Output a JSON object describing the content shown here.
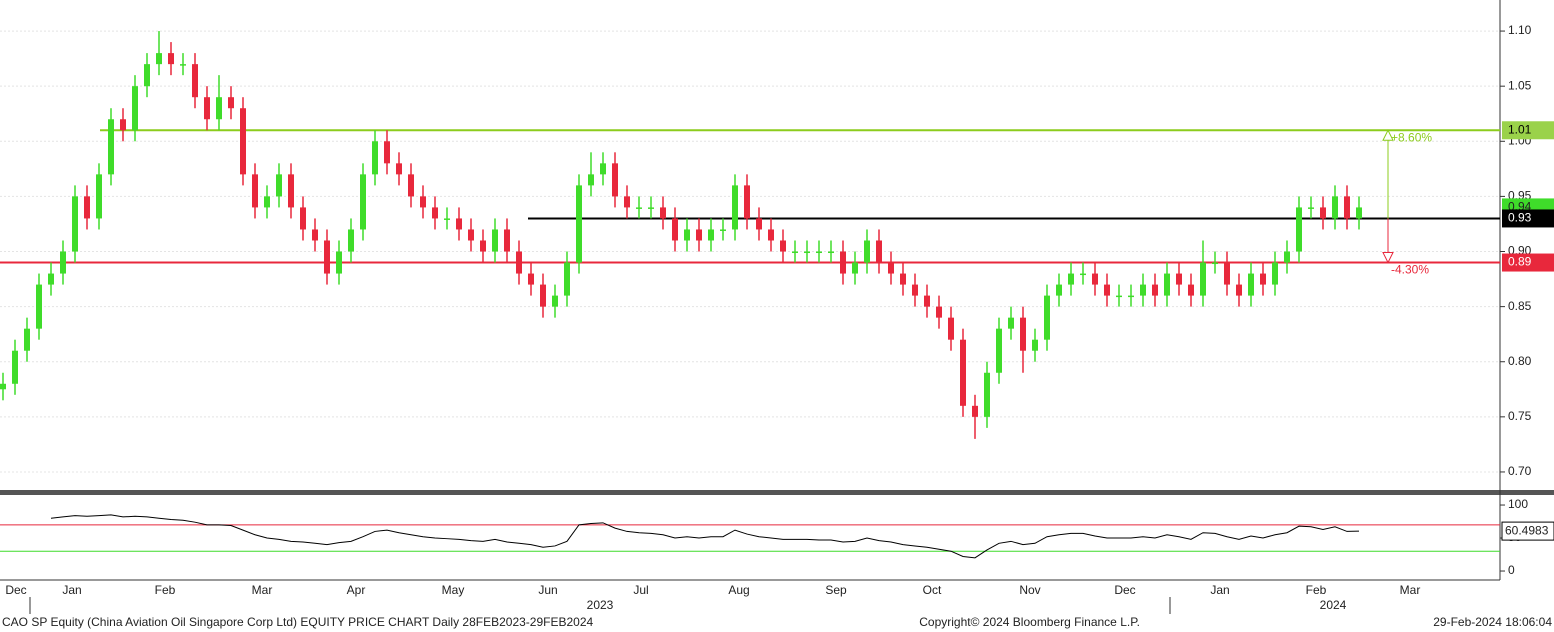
{
  "chart_data": [
    {
      "type": "candlestick",
      "title": "CAO SP Equity (China Aviation Oil Singapore Corp Ltd) EQUITY PRICE CHART  Daily 28FEB2023-29FEB2024",
      "copyright": "Copyright© 2024 Bloomberg Finance L.P.",
      "timestamp": "29-Feb-2024 18:06:04",
      "xtick_labels": [
        "Dec",
        "Jan",
        "Feb",
        "Mar",
        "Apr",
        "May",
        "Jun",
        "Jul",
        "Aug",
        "Sep",
        "Oct",
        "Nov",
        "Dec",
        "Jan",
        "Feb",
        "Mar"
      ],
      "year_labels": [
        "2023",
        "2024"
      ],
      "open": [
        0.775,
        0.78,
        0.81,
        0.83,
        0.87,
        0.88,
        0.9,
        0.95,
        0.93,
        0.97,
        1.02,
        1.01,
        1.05,
        1.07,
        1.08,
        1.07,
        1.07,
        1.04,
        1.02,
        1.04,
        1.03,
        0.97,
        0.94,
        0.95,
        0.97,
        0.94,
        0.92,
        0.91,
        0.88,
        0.9,
        0.92,
        0.97,
        1.0,
        0.98,
        0.97,
        0.95,
        0.94,
        0.93,
        0.93,
        0.92,
        0.91,
        0.9,
        0.92,
        0.9,
        0.88,
        0.87,
        0.85,
        0.86,
        0.89,
        0.96,
        0.97,
        0.98,
        0.95,
        0.94,
        0.94,
        0.94,
        0.93,
        0.91,
        0.92,
        0.91,
        0.92,
        0.92,
        0.96,
        0.93,
        0.92,
        0.91,
        0.9,
        0.9,
        0.9,
        0.9,
        0.9,
        0.88,
        0.89,
        0.91,
        0.89,
        0.88,
        0.87,
        0.86,
        0.85,
        0.84,
        0.82,
        0.76,
        0.75,
        0.79,
        0.83,
        0.84,
        0.81,
        0.82,
        0.86,
        0.87,
        0.88,
        0.88,
        0.87,
        0.86,
        0.86,
        0.86,
        0.87,
        0.86,
        0.88,
        0.87,
        0.86,
        0.89,
        0.89,
        0.87,
        0.86,
        0.88,
        0.87,
        0.89,
        0.9,
        0.94,
        0.94,
        0.93,
        0.95,
        0.93
      ],
      "high": [
        0.79,
        0.82,
        0.84,
        0.88,
        0.89,
        0.91,
        0.96,
        0.96,
        0.98,
        1.03,
        1.03,
        1.06,
        1.08,
        1.1,
        1.09,
        1.08,
        1.08,
        1.05,
        1.06,
        1.05,
        1.04,
        0.98,
        0.96,
        0.98,
        0.98,
        0.95,
        0.93,
        0.92,
        0.91,
        0.93,
        0.98,
        1.01,
        1.01,
        0.99,
        0.98,
        0.96,
        0.95,
        0.94,
        0.94,
        0.93,
        0.92,
        0.93,
        0.93,
        0.91,
        0.89,
        0.88,
        0.87,
        0.9,
        0.97,
        0.99,
        0.99,
        0.99,
        0.96,
        0.95,
        0.95,
        0.95,
        0.94,
        0.93,
        0.93,
        0.93,
        0.93,
        0.97,
        0.97,
        0.94,
        0.93,
        0.92,
        0.91,
        0.91,
        0.91,
        0.91,
        0.91,
        0.9,
        0.92,
        0.92,
        0.9,
        0.89,
        0.88,
        0.87,
        0.86,
        0.85,
        0.83,
        0.77,
        0.8,
        0.84,
        0.85,
        0.85,
        0.83,
        0.87,
        0.88,
        0.89,
        0.89,
        0.89,
        0.88,
        0.87,
        0.87,
        0.88,
        0.88,
        0.89,
        0.89,
        0.88,
        0.91,
        0.9,
        0.9,
        0.88,
        0.89,
        0.89,
        0.9,
        0.91,
        0.95,
        0.95,
        0.95,
        0.96,
        0.96,
        0.95
      ],
      "low": [
        0.765,
        0.77,
        0.8,
        0.82,
        0.86,
        0.87,
        0.89,
        0.92,
        0.92,
        0.96,
        1.0,
        1.0,
        1.04,
        1.06,
        1.06,
        1.06,
        1.03,
        1.01,
        1.01,
        1.02,
        0.96,
        0.93,
        0.93,
        0.94,
        0.93,
        0.91,
        0.9,
        0.87,
        0.87,
        0.89,
        0.91,
        0.96,
        0.97,
        0.96,
        0.94,
        0.93,
        0.92,
        0.92,
        0.91,
        0.9,
        0.89,
        0.89,
        0.89,
        0.87,
        0.86,
        0.84,
        0.84,
        0.85,
        0.88,
        0.95,
        0.96,
        0.94,
        0.93,
        0.93,
        0.93,
        0.92,
        0.9,
        0.9,
        0.9,
        0.9,
        0.91,
        0.91,
        0.92,
        0.91,
        0.9,
        0.89,
        0.89,
        0.89,
        0.89,
        0.89,
        0.87,
        0.87,
        0.88,
        0.88,
        0.87,
        0.86,
        0.85,
        0.84,
        0.83,
        0.81,
        0.75,
        0.73,
        0.74,
        0.78,
        0.82,
        0.79,
        0.8,
        0.81,
        0.85,
        0.86,
        0.87,
        0.86,
        0.85,
        0.85,
        0.85,
        0.85,
        0.85,
        0.85,
        0.86,
        0.85,
        0.85,
        0.88,
        0.86,
        0.85,
        0.85,
        0.86,
        0.86,
        0.88,
        0.89,
        0.93,
        0.92,
        0.92,
        0.92,
        0.92
      ],
      "close": [
        0.78,
        0.81,
        0.83,
        0.87,
        0.88,
        0.9,
        0.95,
        0.93,
        0.97,
        1.02,
        1.01,
        1.05,
        1.07,
        1.08,
        1.07,
        1.07,
        1.04,
        1.02,
        1.04,
        1.03,
        0.97,
        0.94,
        0.95,
        0.97,
        0.94,
        0.92,
        0.91,
        0.88,
        0.9,
        0.92,
        0.97,
        1.0,
        0.98,
        0.97,
        0.95,
        0.94,
        0.93,
        0.93,
        0.92,
        0.91,
        0.9,
        0.92,
        0.9,
        0.88,
        0.87,
        0.85,
        0.86,
        0.89,
        0.96,
        0.97,
        0.98,
        0.95,
        0.94,
        0.94,
        0.94,
        0.93,
        0.91,
        0.92,
        0.91,
        0.92,
        0.92,
        0.96,
        0.93,
        0.92,
        0.91,
        0.9,
        0.9,
        0.9,
        0.9,
        0.9,
        0.88,
        0.89,
        0.91,
        0.89,
        0.88,
        0.87,
        0.86,
        0.85,
        0.84,
        0.82,
        0.76,
        0.75,
        0.79,
        0.83,
        0.84,
        0.81,
        0.82,
        0.86,
        0.87,
        0.88,
        0.88,
        0.87,
        0.86,
        0.86,
        0.86,
        0.87,
        0.86,
        0.88,
        0.87,
        0.86,
        0.89,
        0.89,
        0.87,
        0.86,
        0.88,
        0.87,
        0.89,
        0.9,
        0.94,
        0.94,
        0.93,
        0.95,
        0.93,
        0.94
      ],
      "up_color": "#3fdc2a",
      "down_color": "#e8283c",
      "ylim": [
        0.68,
        1.13
      ],
      "yticks": [
        {
          "value": 0.7,
          "label": "0.70"
        },
        0.75,
        {
          "value": 0.8,
          "label": "0.80"
        },
        0.85,
        {
          "value": 0.9,
          "label": "0.90"
        },
        0.95,
        {
          "value": 1.0,
          "label": "1.00"
        },
        1.05,
        {
          "value": 1.1,
          "label": "1.10"
        }
      ],
      "grid": true,
      "reference_lines": [
        {
          "value": 1.01,
          "color": "#8ccc1c"
        },
        {
          "value": 0.93,
          "color": "#000000"
        },
        {
          "value": 0.89,
          "color": "#e8283c"
        }
      ],
      "annotations": [
        "+8.60%",
        "-4.30%"
      ]
    },
    {
      "type": "line",
      "values": [
        null,
        null,
        null,
        null,
        80,
        82,
        84,
        83,
        84,
        85,
        82,
        83,
        82,
        80,
        78,
        77,
        74,
        70,
        70,
        69,
        62,
        55,
        50,
        48,
        45,
        44,
        42,
        40,
        43,
        45,
        52,
        60,
        62,
        58,
        55,
        52,
        50,
        49,
        48,
        46,
        45,
        48,
        44,
        42,
        40,
        36,
        38,
        45,
        70,
        72,
        73,
        65,
        60,
        58,
        57,
        55,
        50,
        52,
        50,
        52,
        52,
        62,
        56,
        52,
        50,
        48,
        48,
        48,
        47,
        47,
        44,
        45,
        50,
        46,
        44,
        40,
        38,
        36,
        33,
        30,
        22,
        20,
        32,
        42,
        45,
        40,
        42,
        52,
        55,
        57,
        57,
        53,
        50,
        50,
        50,
        52,
        50,
        55,
        52,
        48,
        58,
        57,
        52,
        48,
        53,
        50,
        55,
        58,
        68,
        67,
        63,
        67,
        60,
        60.4983
      ],
      "color": "#000000",
      "ylim": [
        -13.6,
        115.2
      ],
      "yticks": [
        0,
        50,
        100
      ],
      "reference_lines": [
        {
          "value": 70,
          "color": "#e8283c"
        },
        {
          "value": 30,
          "color": "#3fdc2a"
        }
      ]
    }
  ]
}
